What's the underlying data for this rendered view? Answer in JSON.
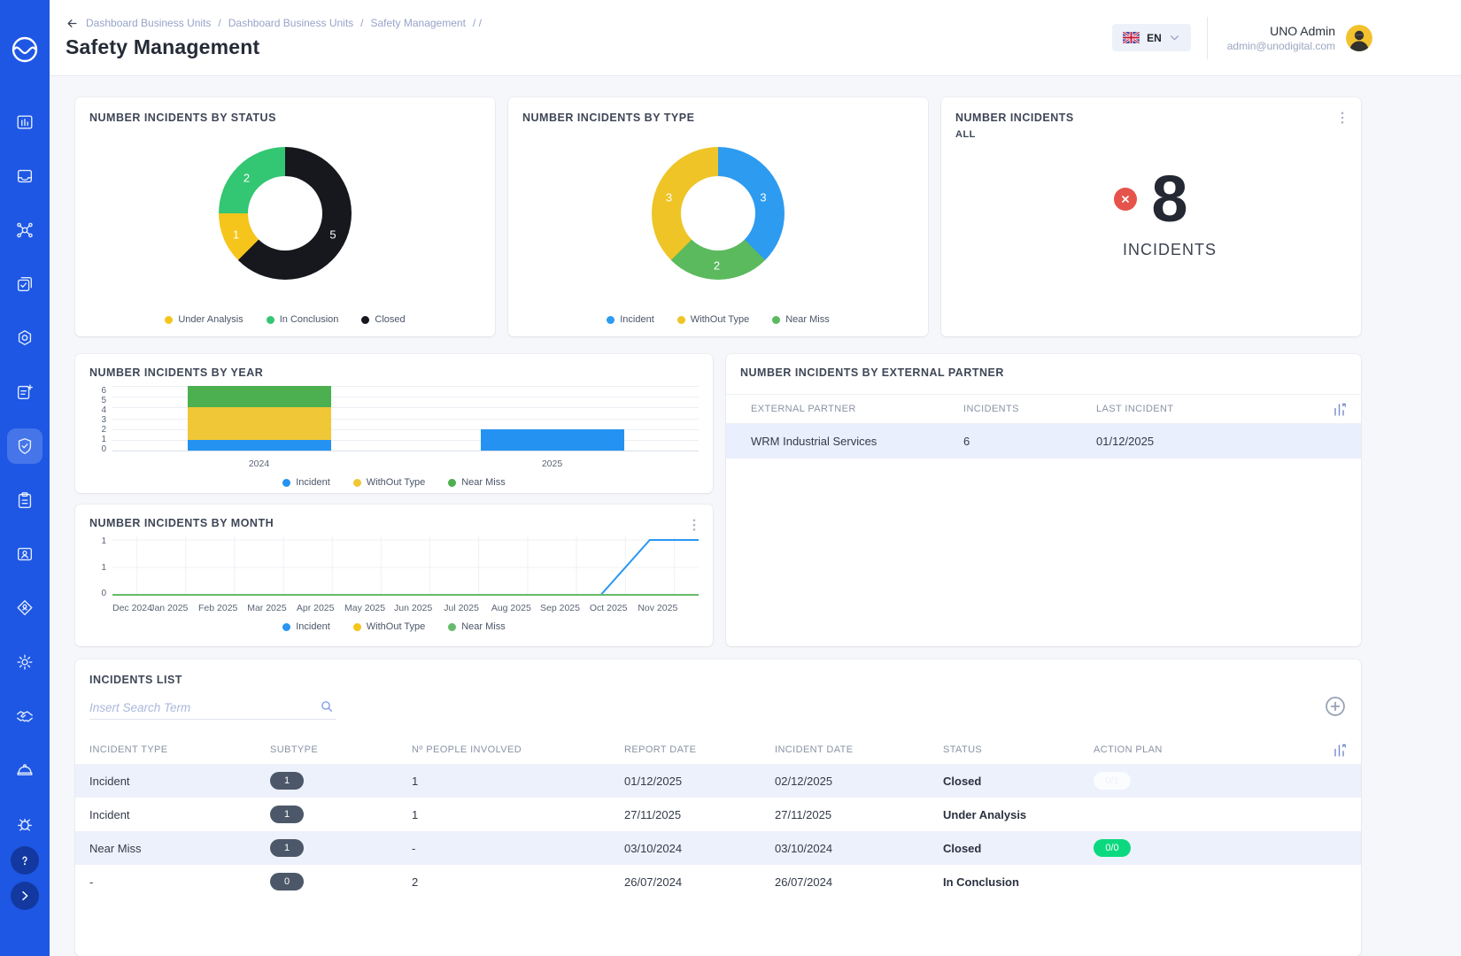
{
  "header": {
    "breadcrumb_parts": [
      "Dashboard Business Units",
      "Dashboard Business Units",
      "Safety Management"
    ],
    "separator": "/",
    "tail": "/  /",
    "title": "Safety Management",
    "language": "EN",
    "user_name": "UNO Admin",
    "user_email": "admin@unodigital.com"
  },
  "sidebar": {
    "icons": [
      "logo",
      "dashboard",
      "inbox",
      "network",
      "documents",
      "hex-settings",
      "form-new",
      "safety-shield",
      "clipboard",
      "contacts-folder",
      "user-diamond",
      "settings-gear",
      "handshake",
      "hard-hat",
      "bug-report",
      "help",
      "expand"
    ],
    "active": "safety-shield",
    "color": "#1D57E4"
  },
  "incidents_summary": {
    "title": "NUMBER INCIDENTS",
    "subtitle": "ALL",
    "value": "8",
    "unit_label": "INCIDENTS",
    "icon_color": "#E5534B"
  },
  "partner_table": {
    "title": "NUMBER INCIDENTS BY EXTERNAL PARTNER",
    "columns": [
      "EXTERNAL PARTNER",
      "INCIDENTS",
      "LAST INCIDENT"
    ],
    "rows": [
      {
        "partner": "WRM Industrial Services",
        "incidents": "6",
        "last_incident": "01/12/2025"
      }
    ]
  },
  "incidents_list": {
    "title": "INCIDENTS LIST",
    "search_placeholder": "Insert Search Term",
    "columns": [
      "INCIDENT TYPE",
      "SUBTYPE",
      "Nº PEOPLE INVOLVED",
      "REPORT DATE",
      "INCIDENT DATE",
      "STATUS",
      "ACTION PLAN"
    ],
    "rows": [
      {
        "type": "Incident",
        "subtype": "1",
        "people": "1",
        "report": "01/12/2025",
        "incident": "02/12/2025",
        "status": "Closed",
        "action": "0/1"
      },
      {
        "type": "Incident",
        "subtype": "1",
        "people": "1",
        "report": "27/11/2025",
        "incident": "27/11/2025",
        "status": "Under Analysis",
        "action": ""
      },
      {
        "type": "Near Miss",
        "subtype": "1",
        "people": "-",
        "report": "03/10/2024",
        "incident": "03/10/2024",
        "status": "Closed",
        "action": "0/0"
      },
      {
        "type": "-",
        "subtype": "0",
        "people": "2",
        "report": "26/07/2024",
        "incident": "26/07/2024",
        "status": "In Conclusion",
        "action": ""
      }
    ]
  },
  "chart_data": [
    {
      "type": "pie",
      "variant": "donut",
      "title": "NUMBER INCIDENTS BY STATUS",
      "segments": [
        {
          "label": "Closed",
          "value": 5,
          "color": "#17181D"
        },
        {
          "label": "Under Analysis",
          "value": 1,
          "color": "#F5C51B"
        },
        {
          "label": "In Conclusion",
          "value": 2,
          "color": "#33C673"
        }
      ],
      "legend": [
        {
          "label": "Under Analysis",
          "color": "#F5C51B"
        },
        {
          "label": "In Conclusion",
          "color": "#33C673"
        },
        {
          "label": "Closed",
          "color": "#17181D"
        }
      ],
      "legend_position": "bottom"
    },
    {
      "type": "pie",
      "variant": "donut",
      "title": "NUMBER INCIDENTS BY TYPE",
      "segments": [
        {
          "label": "Incident",
          "value": 3,
          "color": "#2D9BF0"
        },
        {
          "label": "Near Miss",
          "value": 2,
          "color": "#5BB95E"
        },
        {
          "label": "WithOut Type",
          "value": 3,
          "color": "#EEC427"
        }
      ],
      "legend": [
        {
          "label": "Incident",
          "color": "#2D9BF0"
        },
        {
          "label": "WithOut Type",
          "color": "#EEC427"
        },
        {
          "label": "Near Miss",
          "color": "#5BB95E"
        }
      ],
      "legend_position": "bottom"
    },
    {
      "type": "bar",
      "stacked": true,
      "title": "NUMBER INCIDENTS BY YEAR",
      "categories": [
        "2024",
        "2025"
      ],
      "series": [
        {
          "name": "Incident",
          "color": "#2492F0",
          "values": [
            1,
            2
          ]
        },
        {
          "name": "WithOut Type",
          "color": "#F0C737",
          "values": [
            3,
            0
          ]
        },
        {
          "name": "Near Miss",
          "color": "#4CAF50",
          "values": [
            2,
            0
          ]
        }
      ],
      "ylim": [
        0,
        6
      ],
      "yticks": [
        "6",
        "5",
        "4",
        "3",
        "2",
        "1",
        "0"
      ],
      "grid": true,
      "legend": [
        {
          "label": "Incident",
          "color": "#2492F0"
        },
        {
          "label": "WithOut Type",
          "color": "#F0C737"
        },
        {
          "label": "Near Miss",
          "color": "#4CAF50"
        }
      ],
      "legend_position": "bottom"
    },
    {
      "type": "line",
      "title": "NUMBER INCIDENTS BY MONTH",
      "categories": [
        "Dec 2024",
        "Jan 2025",
        "Feb 2025",
        "Mar 2025",
        "Apr 2025",
        "May 2025",
        "Jun 2025",
        "Jul 2025",
        "Aug 2025",
        "Sep 2025",
        "Oct 2025",
        "Nov 2025"
      ],
      "series": [
        {
          "name": "Incident",
          "color": "#2B96F3",
          "values": [
            0,
            0,
            0,
            0,
            0,
            0,
            0,
            0,
            0,
            0,
            0,
            1
          ]
        },
        {
          "name": "WithOut Type",
          "color": "#F5C51B",
          "values": [
            0,
            0,
            0,
            0,
            0,
            0,
            0,
            0,
            0,
            0,
            0,
            0
          ]
        },
        {
          "name": "Near Miss",
          "color": "#66BB6A",
          "values": [
            0,
            0,
            0,
            0,
            0,
            0,
            0,
            0,
            0,
            0,
            0,
            0
          ]
        }
      ],
      "ylim": [
        0,
        1
      ],
      "yticks": [
        "1",
        "1",
        "0"
      ],
      "extend_right": true,
      "grid": true,
      "legend": [
        {
          "label": "Incident",
          "color": "#2B96F3"
        },
        {
          "label": "WithOut Type",
          "color": "#F5C51B"
        },
        {
          "label": "Near Miss",
          "color": "#66BB6A"
        }
      ],
      "legend_position": "bottom"
    }
  ]
}
